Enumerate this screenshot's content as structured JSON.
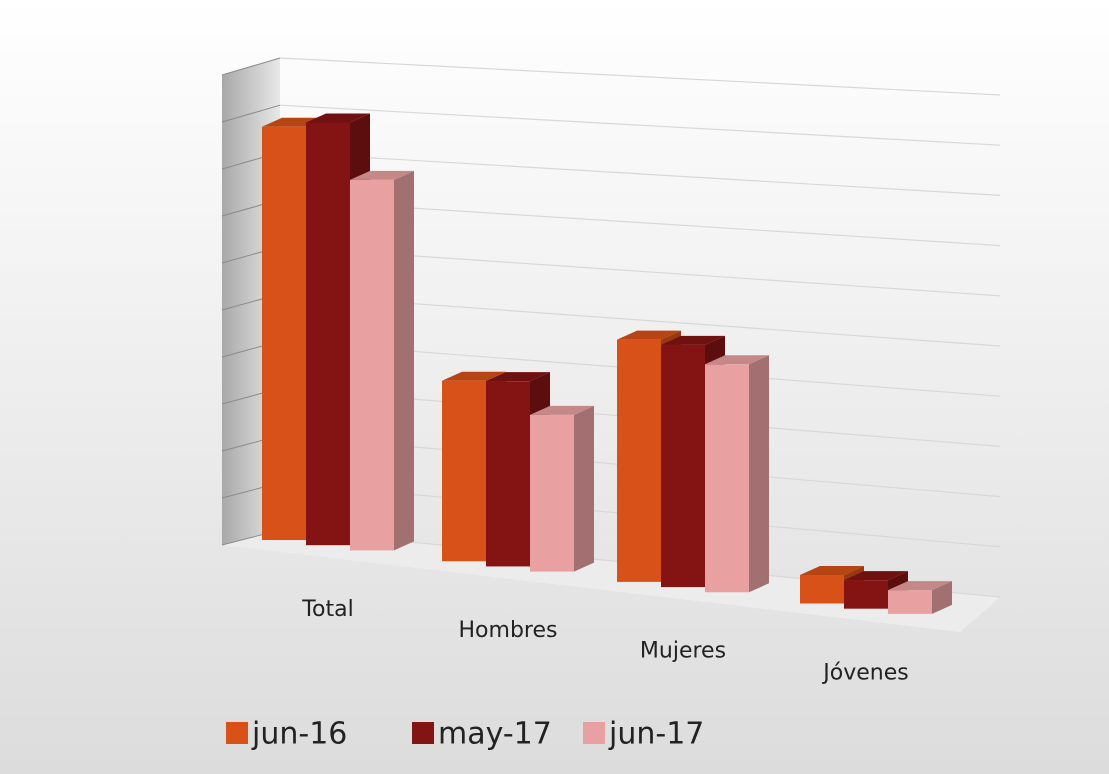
{
  "chart_data": {
    "type": "bar3d",
    "categories": [
      "Total",
      "Hombres",
      "Mujeres",
      "Jóvenes"
    ],
    "series": [
      {
        "name": "jun-16",
        "color": "#d75118",
        "values": [
          8.7,
          3.8,
          5.1,
          0.6
        ]
      },
      {
        "name": "may-17",
        "color": "#841414",
        "values": [
          8.9,
          3.9,
          5.1,
          0.6
        ]
      },
      {
        "name": "jun-17",
        "color": "#e8a0a0",
        "values": [
          7.8,
          3.3,
          4.8,
          0.5
        ]
      }
    ],
    "ylim": [
      0,
      10
    ],
    "yticks": [
      0,
      1,
      2,
      3,
      4,
      5,
      6,
      7,
      8,
      9,
      10
    ],
    "grid": true,
    "legend": "bottom"
  }
}
